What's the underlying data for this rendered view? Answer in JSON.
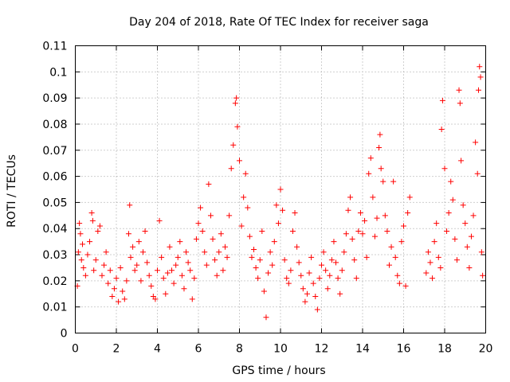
{
  "chart_data": {
    "type": "scatter",
    "title": "Day 204 of 2018, Rate Of TEC Index for receiver saga",
    "xlabel": "GPS time / hours",
    "ylabel": "ROTI / TECUs",
    "xlim": [
      0,
      20
    ],
    "ylim": [
      0,
      0.11
    ],
    "xticks": [
      0,
      2,
      4,
      6,
      8,
      10,
      12,
      14,
      16,
      18,
      20
    ],
    "xtick_labels": [
      "0",
      "2",
      "4",
      "6",
      "8",
      "10",
      "12",
      "14",
      "16",
      "18",
      "20"
    ],
    "yticks": [
      0,
      0.01,
      0.02,
      0.03,
      0.04,
      0.05,
      0.06,
      0.07,
      0.08,
      0.09,
      0.1,
      0.11
    ],
    "ytick_labels": [
      "0",
      "0.01",
      "0.02",
      "0.03",
      "0.04",
      "0.05",
      "0.06",
      "0.07",
      "0.08",
      "0.09",
      "0.1",
      "0.11"
    ],
    "grid": true,
    "marker": "+",
    "color": "#ff0000",
    "series": [
      {
        "name": "ROTI",
        "points": [
          [
            0.1,
            0.018
          ],
          [
            0.15,
            0.031
          ],
          [
            0.2,
            0.042
          ],
          [
            0.25,
            0.038
          ],
          [
            0.3,
            0.028
          ],
          [
            0.35,
            0.034
          ],
          [
            0.4,
            0.025
          ],
          [
            0.5,
            0.022
          ],
          [
            0.6,
            0.03
          ],
          [
            0.7,
            0.035
          ],
          [
            0.8,
            0.046
          ],
          [
            0.85,
            0.043
          ],
          [
            0.9,
            0.024
          ],
          [
            1.0,
            0.028
          ],
          [
            1.1,
            0.039
          ],
          [
            1.2,
            0.041
          ],
          [
            1.3,
            0.022
          ],
          [
            1.4,
            0.026
          ],
          [
            1.5,
            0.031
          ],
          [
            1.6,
            0.019
          ],
          [
            1.7,
            0.024
          ],
          [
            1.8,
            0.014
          ],
          [
            1.9,
            0.017
          ],
          [
            2.0,
            0.021
          ],
          [
            2.1,
            0.012
          ],
          [
            2.2,
            0.025
          ],
          [
            2.3,
            0.016
          ],
          [
            2.4,
            0.013
          ],
          [
            2.5,
            0.02
          ],
          [
            2.6,
            0.038
          ],
          [
            2.65,
            0.049
          ],
          [
            2.7,
            0.029
          ],
          [
            2.8,
            0.033
          ],
          [
            2.9,
            0.024
          ],
          [
            3.0,
            0.026
          ],
          [
            3.1,
            0.035
          ],
          [
            3.2,
            0.02
          ],
          [
            3.3,
            0.031
          ],
          [
            3.4,
            0.039
          ],
          [
            3.5,
            0.027
          ],
          [
            3.6,
            0.022
          ],
          [
            3.7,
            0.018
          ],
          [
            3.8,
            0.014
          ],
          [
            3.9,
            0.013
          ],
          [
            4.0,
            0.024
          ],
          [
            4.1,
            0.043
          ],
          [
            4.2,
            0.029
          ],
          [
            4.3,
            0.021
          ],
          [
            4.4,
            0.015
          ],
          [
            4.5,
            0.023
          ],
          [
            4.6,
            0.033
          ],
          [
            4.7,
            0.024
          ],
          [
            4.8,
            0.019
          ],
          [
            4.9,
            0.026
          ],
          [
            5.0,
            0.029
          ],
          [
            5.1,
            0.035
          ],
          [
            5.2,
            0.022
          ],
          [
            5.3,
            0.017
          ],
          [
            5.4,
            0.031
          ],
          [
            5.5,
            0.027
          ],
          [
            5.6,
            0.024
          ],
          [
            5.7,
            0.013
          ],
          [
            5.8,
            0.021
          ],
          [
            5.9,
            0.036
          ],
          [
            6.0,
            0.042
          ],
          [
            6.1,
            0.048
          ],
          [
            6.2,
            0.039
          ],
          [
            6.3,
            0.031
          ],
          [
            6.4,
            0.026
          ],
          [
            6.5,
            0.057
          ],
          [
            6.6,
            0.045
          ],
          [
            6.7,
            0.036
          ],
          [
            6.8,
            0.028
          ],
          [
            6.9,
            0.022
          ],
          [
            7.0,
            0.031
          ],
          [
            7.1,
            0.038
          ],
          [
            7.2,
            0.024
          ],
          [
            7.3,
            0.033
          ],
          [
            7.4,
            0.029
          ],
          [
            7.5,
            0.045
          ],
          [
            7.6,
            0.063
          ],
          [
            7.7,
            0.072
          ],
          [
            7.8,
            0.088
          ],
          [
            7.85,
            0.09
          ],
          [
            7.9,
            0.079
          ],
          [
            8.0,
            0.066
          ],
          [
            8.1,
            0.041
          ],
          [
            8.2,
            0.052
          ],
          [
            8.3,
            0.061
          ],
          [
            8.4,
            0.048
          ],
          [
            8.5,
            0.037
          ],
          [
            8.6,
            0.029
          ],
          [
            8.7,
            0.032
          ],
          [
            8.8,
            0.025
          ],
          [
            8.9,
            0.021
          ],
          [
            9.0,
            0.028
          ],
          [
            9.1,
            0.039
          ],
          [
            9.2,
            0.016
          ],
          [
            9.3,
            0.006
          ],
          [
            9.4,
            0.023
          ],
          [
            9.5,
            0.031
          ],
          [
            9.6,
            0.026
          ],
          [
            9.7,
            0.035
          ],
          [
            9.8,
            0.049
          ],
          [
            9.9,
            0.042
          ],
          [
            10.0,
            0.055
          ],
          [
            10.1,
            0.047
          ],
          [
            10.2,
            0.028
          ],
          [
            10.3,
            0.021
          ],
          [
            10.4,
            0.019
          ],
          [
            10.5,
            0.024
          ],
          [
            10.6,
            0.039
          ],
          [
            10.7,
            0.046
          ],
          [
            10.8,
            0.033
          ],
          [
            10.9,
            0.027
          ],
          [
            11.0,
            0.022
          ],
          [
            11.1,
            0.017
          ],
          [
            11.2,
            0.012
          ],
          [
            11.3,
            0.015
          ],
          [
            11.4,
            0.023
          ],
          [
            11.5,
            0.029
          ],
          [
            11.6,
            0.019
          ],
          [
            11.7,
            0.014
          ],
          [
            11.8,
            0.009
          ],
          [
            11.9,
            0.021
          ],
          [
            12.0,
            0.026
          ],
          [
            12.1,
            0.031
          ],
          [
            12.2,
            0.024
          ],
          [
            12.3,
            0.017
          ],
          [
            12.4,
            0.022
          ],
          [
            12.5,
            0.028
          ],
          [
            12.6,
            0.035
          ],
          [
            12.7,
            0.027
          ],
          [
            12.8,
            0.021
          ],
          [
            12.9,
            0.015
          ],
          [
            13.0,
            0.024
          ],
          [
            13.1,
            0.031
          ],
          [
            13.2,
            0.038
          ],
          [
            13.3,
            0.047
          ],
          [
            13.4,
            0.052
          ],
          [
            13.5,
            0.036
          ],
          [
            13.6,
            0.028
          ],
          [
            13.7,
            0.021
          ],
          [
            13.8,
            0.039
          ],
          [
            13.9,
            0.046
          ],
          [
            14.0,
            0.038
          ],
          [
            14.1,
            0.043
          ],
          [
            14.2,
            0.029
          ],
          [
            14.3,
            0.061
          ],
          [
            14.4,
            0.067
          ],
          [
            14.5,
            0.052
          ],
          [
            14.6,
            0.037
          ],
          [
            14.7,
            0.044
          ],
          [
            14.8,
            0.071
          ],
          [
            14.85,
            0.076
          ],
          [
            14.9,
            0.063
          ],
          [
            15.0,
            0.058
          ],
          [
            15.1,
            0.045
          ],
          [
            15.2,
            0.039
          ],
          [
            15.3,
            0.026
          ],
          [
            15.4,
            0.033
          ],
          [
            15.5,
            0.058
          ],
          [
            15.6,
            0.029
          ],
          [
            15.7,
            0.022
          ],
          [
            15.8,
            0.019
          ],
          [
            15.9,
            0.035
          ],
          [
            16.0,
            0.041
          ],
          [
            16.1,
            0.018
          ],
          [
            16.2,
            0.046
          ],
          [
            16.3,
            0.052
          ],
          [
            17.1,
            0.023
          ],
          [
            17.2,
            0.031
          ],
          [
            17.3,
            0.027
          ],
          [
            17.4,
            0.021
          ],
          [
            17.5,
            0.035
          ],
          [
            17.6,
            0.042
          ],
          [
            17.7,
            0.029
          ],
          [
            17.8,
            0.025
          ],
          [
            17.85,
            0.078
          ],
          [
            17.9,
            0.089
          ],
          [
            18.0,
            0.063
          ],
          [
            18.1,
            0.039
          ],
          [
            18.2,
            0.046
          ],
          [
            18.3,
            0.058
          ],
          [
            18.4,
            0.051
          ],
          [
            18.5,
            0.036
          ],
          [
            18.6,
            0.028
          ],
          [
            18.7,
            0.093
          ],
          [
            18.75,
            0.088
          ],
          [
            18.8,
            0.066
          ],
          [
            18.9,
            0.049
          ],
          [
            19.0,
            0.042
          ],
          [
            19.1,
            0.033
          ],
          [
            19.2,
            0.025
          ],
          [
            19.3,
            0.037
          ],
          [
            19.4,
            0.045
          ],
          [
            19.5,
            0.073
          ],
          [
            19.6,
            0.061
          ],
          [
            19.65,
            0.093
          ],
          [
            19.7,
            0.102
          ],
          [
            19.75,
            0.098
          ],
          [
            19.8,
            0.031
          ],
          [
            19.85,
            0.022
          ]
        ]
      }
    ]
  }
}
